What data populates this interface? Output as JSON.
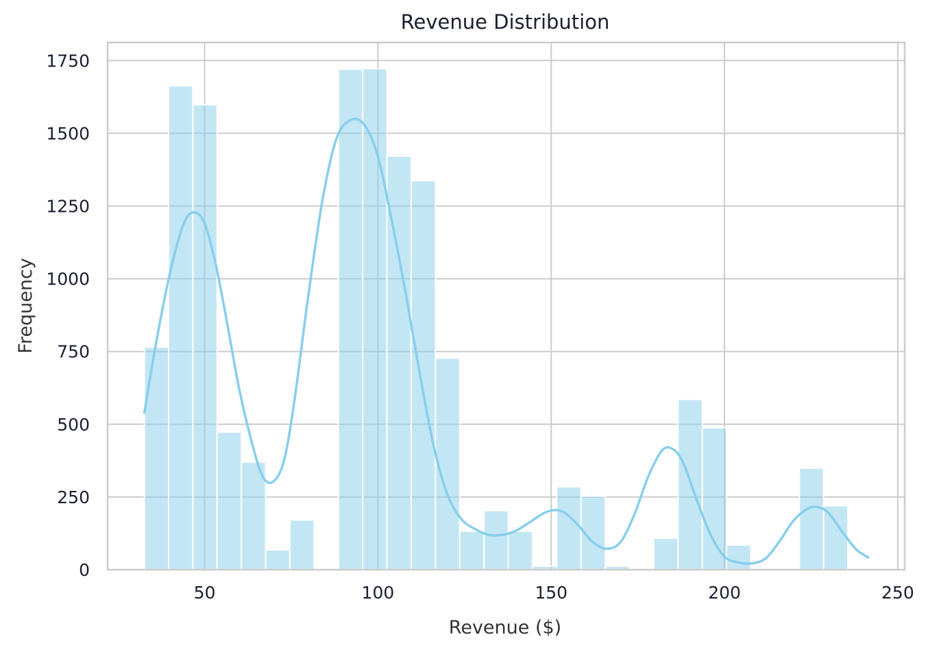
{
  "chart_data": {
    "type": "bar",
    "title": "Revenue Distribution",
    "xlabel": "Revenue ($)",
    "ylabel": "Frequency",
    "xlim": [
      22,
      252
    ],
    "ylim": [
      0,
      1812
    ],
    "xticks": [
      50,
      100,
      150,
      200,
      250
    ],
    "yticks": [
      0,
      250,
      500,
      750,
      1000,
      1250,
      1500,
      1750
    ],
    "grid": true,
    "color": "#87ceeb",
    "bins": {
      "start": 32.6,
      "width": 7.0,
      "counts": [
        765,
        1663,
        1598,
        473,
        370,
        68,
        171,
        0,
        1720,
        1722,
        1422,
        1337,
        727,
        132,
        203,
        132,
        12,
        285,
        253,
        12,
        0,
        108,
        585,
        488,
        85,
        0,
        0,
        349,
        220,
        5
      ]
    },
    "kde": {
      "x": [
        32.6,
        36,
        40,
        44,
        47,
        50,
        53,
        56,
        60,
        64,
        67,
        70,
        73,
        76,
        80,
        84,
        88,
        92,
        96,
        100,
        104,
        108,
        112,
        116,
        120,
        124,
        128,
        132,
        136,
        140,
        144,
        148,
        151,
        154,
        158,
        162,
        166,
        170,
        174,
        178,
        182,
        185,
        188,
        192,
        196,
        200,
        204,
        208,
        212,
        216,
        220,
        224,
        227,
        230,
        234,
        238,
        241.5
      ],
      "y": [
        540,
        780,
        1020,
        1190,
        1228,
        1190,
        1060,
        880,
        620,
        420,
        315,
        305,
        380,
        590,
        950,
        1270,
        1480,
        1545,
        1530,
        1420,
        1200,
        950,
        680,
        430,
        260,
        175,
        140,
        120,
        120,
        135,
        165,
        195,
        205,
        195,
        150,
        95,
        72,
        95,
        190,
        320,
        410,
        415,
        370,
        240,
        120,
        45,
        25,
        22,
        40,
        100,
        170,
        210,
        215,
        195,
        130,
        70,
        42
      ]
    }
  }
}
